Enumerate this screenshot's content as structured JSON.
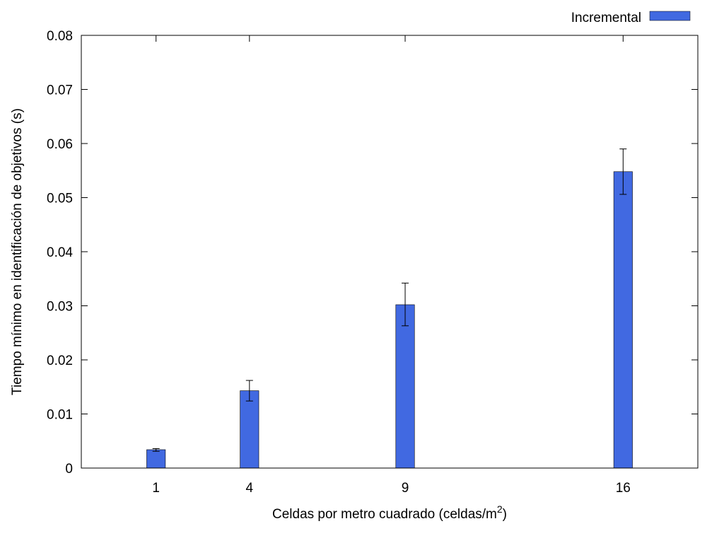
{
  "chart_data": {
    "type": "bar",
    "x": [
      1,
      4,
      9,
      16
    ],
    "xticks": [
      "1",
      "4",
      "9",
      "16"
    ],
    "xlim": [
      -1.4,
      18.4
    ],
    "ylim": [
      0,
      0.08
    ],
    "yticks": [
      "0",
      "0.01",
      "0.02",
      "0.03",
      "0.04",
      "0.05",
      "0.06",
      "0.07",
      "0.08"
    ],
    "ytick_values": [
      0,
      0.01,
      0.02,
      0.03,
      0.04,
      0.05,
      0.06,
      0.07,
      0.08
    ],
    "series": [
      {
        "name": "Incremental",
        "color": "#4169e1",
        "values": [
          0.0034,
          0.0143,
          0.0302,
          0.0548
        ],
        "err_low": [
          0.0031,
          0.0124,
          0.0263,
          0.0506
        ],
        "err_high": [
          0.0036,
          0.0162,
          0.0342,
          0.059
        ]
      }
    ],
    "bar_width": 0.6,
    "xlabel": "Celdas por metro cuadrado (celdas/m",
    "xlabel_sup": "2",
    "xlabel_end": ")",
    "ylabel": "Tiempo mínimo en identificación de objetivos (s)",
    "legend": {
      "position": "top-right",
      "label": "Incremental"
    },
    "grid": false
  }
}
